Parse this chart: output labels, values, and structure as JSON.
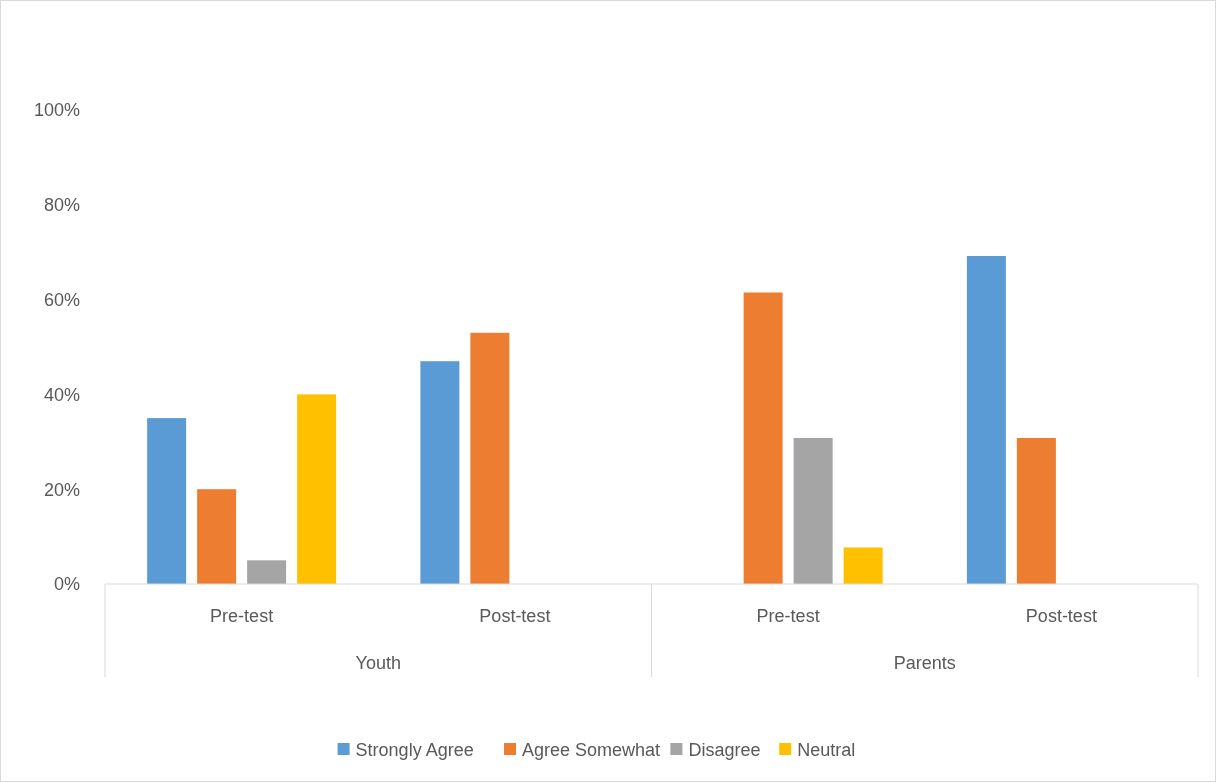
{
  "chart_data": {
    "type": "bar",
    "categories": [
      "Pre-test",
      "Post-test",
      "Pre-test",
      "Post-test"
    ],
    "annotations": [
      "Youth",
      "Parents"
    ],
    "series": [
      {
        "name": "Strongly Agree",
        "color": "#5b9bd5",
        "values": [
          35,
          47,
          null,
          69.2
        ]
      },
      {
        "name": "Agree Somewhat",
        "color": "#ed7d31",
        "values": [
          20,
          53,
          61.5,
          30.8
        ]
      },
      {
        "name": "Disagree",
        "color": "#a5a5a5",
        "values": [
          5,
          null,
          30.8,
          null
        ]
      },
      {
        "name": "Neutral",
        "color": "#ffc000",
        "values": [
          40,
          null,
          7.7,
          null
        ]
      }
    ],
    "ylim": [
      0,
      100
    ],
    "yticks": [
      {
        "value": 0,
        "label": "0%"
      },
      {
        "value": 20,
        "label": "20%"
      },
      {
        "value": 40,
        "label": "40%"
      },
      {
        "value": 60,
        "label": "60%"
      },
      {
        "value": 80,
        "label": "80%"
      },
      {
        "value": 100,
        "label": "100%"
      }
    ],
    "grid": false,
    "legend": "bottom"
  }
}
